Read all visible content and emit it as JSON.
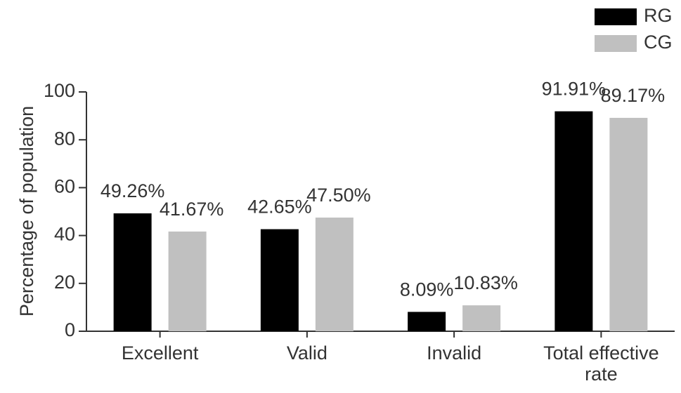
{
  "chart_data": {
    "type": "bar",
    "y_label": "Percentage of population",
    "categories": [
      "Excellent",
      "Valid",
      "Invalid",
      "Total effective rate"
    ],
    "series": [
      {
        "name": "RG",
        "color": "#000000",
        "values": [
          49.26,
          42.65,
          8.09,
          91.91
        ],
        "value_labels": [
          "49.26%",
          "42.65%",
          "8.09%",
          "91.91%"
        ]
      },
      {
        "name": "CG",
        "color": "#c0c0c0",
        "values": [
          41.67,
          47.5,
          10.83,
          89.17
        ],
        "value_labels": [
          "41.67%",
          "47.50%",
          "10.83%",
          "89.17%"
        ]
      }
    ],
    "ylim": [
      0,
      100
    ],
    "yticks": [
      0,
      20,
      40,
      60,
      80,
      100
    ],
    "legend": "top-right"
  }
}
